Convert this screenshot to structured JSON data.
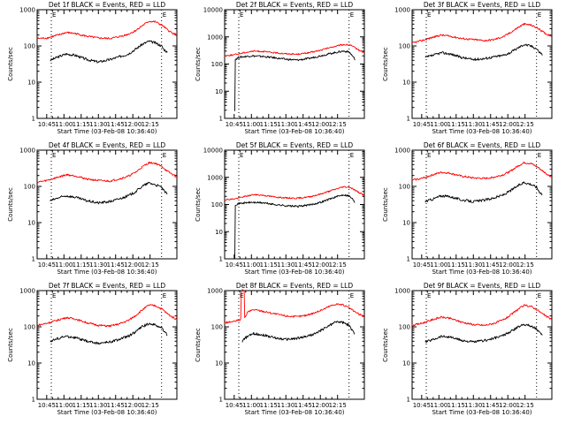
{
  "colors": {
    "events": "#000000",
    "lld": "#ff0000",
    "markers": "#000000"
  },
  "chart_data": [
    {
      "type": "line",
      "title": "Det 1f BLACK = Events, RED = LLD",
      "xlabel": "Start Time (03-Feb-08 10:36:40)",
      "ylabel": "Counts/sec",
      "yscale": "log",
      "ylim": [
        1,
        1000
      ],
      "yticks": [
        "1",
        "10",
        "100",
        "1000"
      ],
      "xticks": [
        "10:45",
        "11:00",
        "11:15",
        "11:30",
        "11:45",
        "12:00",
        "12:15"
      ],
      "xlim_min": [
        36.67,
        158.33
      ],
      "vlines_min": [
        49,
        145
      ],
      "marker_label": "E",
      "series": [
        {
          "name": "Events",
          "color": "black",
          "start": 48,
          "end": 150,
          "x": [
            48,
            55,
            62,
            70,
            80,
            90,
            100,
            108,
            116,
            122,
            128,
            134,
            140,
            145,
            147,
            149,
            150
          ],
          "y": [
            40,
            50,
            60,
            55,
            42,
            36,
            42,
            50,
            60,
            80,
            110,
            135,
            120,
            100,
            80,
            72,
            65
          ]
        },
        {
          "name": "LLD",
          "color": "red",
          "start": 36.67,
          "end": 158.33,
          "x": [
            36.67,
            45,
            55,
            62,
            70,
            80,
            90,
            100,
            108,
            116,
            122,
            128,
            134,
            140,
            146,
            150,
            154,
            158.33
          ],
          "y": [
            160,
            165,
            200,
            235,
            220,
            185,
            165,
            160,
            180,
            210,
            260,
            360,
            480,
            460,
            360,
            280,
            230,
            200
          ]
        }
      ]
    },
    {
      "type": "line",
      "title": "Det 2f BLACK = Events, RED = LLD",
      "xlabel": "Start Time (03-Feb-08 10:36:40)",
      "ylabel": "Counts/sec",
      "yscale": "log",
      "ylim": [
        1,
        10000
      ],
      "yticks": [
        "1",
        "10",
        "100",
        "1000",
        "10000"
      ],
      "xticks": [
        "10:45",
        "11:00",
        "11:15",
        "11:30",
        "11:45",
        "12:00",
        "12:15"
      ],
      "xlim_min": [
        36.67,
        158.33
      ],
      "vlines_min": [
        49,
        145
      ],
      "marker_label": "E",
      "series": [
        {
          "name": "Events",
          "color": "black",
          "start": 45.5,
          "end": 150,
          "x": [
            45.5,
            45.7,
            46,
            50,
            60,
            70,
            80,
            90,
            100,
            110,
            120,
            130,
            140,
            145,
            148,
            150
          ],
          "y": [
            2,
            120,
            150,
            180,
            200,
            190,
            170,
            150,
            140,
            160,
            200,
            250,
            300,
            280,
            200,
            150
          ]
        },
        {
          "name": "LLD",
          "color": "red",
          "start": 36.67,
          "end": 158.33,
          "x": [
            36.67,
            45,
            55,
            62,
            70,
            80,
            90,
            100,
            110,
            120,
            130,
            140,
            146,
            150,
            154,
            158.33
          ],
          "y": [
            200,
            220,
            270,
            300,
            290,
            260,
            240,
            230,
            260,
            320,
            420,
            520,
            500,
            400,
            320,
            260
          ]
        }
      ]
    },
    {
      "type": "line",
      "title": "Det 3f BLACK = Events, RED = LLD",
      "xlabel": "Start Time (03-Feb-08 10:36:40)",
      "ylabel": "Counts/sec",
      "yscale": "log",
      "ylim": [
        1,
        1000
      ],
      "yticks": [
        "1",
        "10",
        "100",
        "1000"
      ],
      "xticks": [
        "10:45",
        "11:00",
        "11:15",
        "11:30",
        "11:45",
        "12:00",
        "12:15"
      ],
      "xlim_min": [
        36.67,
        158.33
      ],
      "vlines_min": [
        49,
        145
      ],
      "marker_label": "E",
      "series": [
        {
          "name": "Events",
          "color": "black",
          "start": 48,
          "end": 150,
          "x": [
            48,
            55,
            62,
            70,
            80,
            90,
            100,
            108,
            116,
            122,
            128,
            134,
            140,
            145,
            147,
            149,
            150
          ],
          "y": [
            48,
            55,
            65,
            60,
            48,
            42,
            45,
            50,
            55,
            65,
            85,
            110,
            100,
            85,
            70,
            62,
            58
          ]
        },
        {
          "name": "LLD",
          "color": "red",
          "start": 36.67,
          "end": 158.33,
          "x": [
            36.67,
            45,
            55,
            62,
            70,
            80,
            90,
            100,
            108,
            116,
            122,
            128,
            134,
            140,
            146,
            150,
            154,
            158.33
          ],
          "y": [
            120,
            140,
            175,
            200,
            185,
            160,
            150,
            140,
            150,
            180,
            230,
            310,
            400,
            380,
            310,
            250,
            210,
            190
          ]
        }
      ]
    },
    {
      "type": "line",
      "title": "Det 4f BLACK = Events, RED = LLD",
      "xlabel": "Start Time (03-Feb-08 10:36:40)",
      "ylabel": "Counts/sec",
      "yscale": "log",
      "ylim": [
        1,
        1000
      ],
      "yticks": [
        "1",
        "10",
        "100",
        "1000"
      ],
      "xticks": [
        "10:45",
        "11:00",
        "11:15",
        "11:30",
        "11:45",
        "12:00",
        "12:15"
      ],
      "xlim_min": [
        36.67,
        158.33
      ],
      "vlines_min": [
        49,
        145
      ],
      "marker_label": "E",
      "series": [
        {
          "name": "Events",
          "color": "black",
          "start": 48,
          "end": 150,
          "x": [
            48,
            55,
            62,
            70,
            80,
            90,
            100,
            108,
            116,
            122,
            128,
            134,
            140,
            145,
            147,
            149,
            150
          ],
          "y": [
            40,
            48,
            55,
            50,
            40,
            35,
            38,
            45,
            55,
            70,
            100,
            125,
            110,
            95,
            75,
            65,
            60
          ]
        },
        {
          "name": "LLD",
          "color": "red",
          "start": 36.67,
          "end": 158.33,
          "x": [
            36.67,
            45,
            55,
            62,
            70,
            80,
            90,
            100,
            108,
            116,
            122,
            128,
            134,
            140,
            146,
            150,
            154,
            158.33
          ],
          "y": [
            130,
            145,
            180,
            210,
            195,
            160,
            145,
            140,
            160,
            190,
            240,
            340,
            450,
            430,
            340,
            260,
            220,
            180
          ]
        }
      ]
    },
    {
      "type": "line",
      "title": "Det 5f BLACK = Events, RED = LLD",
      "xlabel": "Start Time (03-Feb-08 10:36:40)",
      "ylabel": "Counts/sec",
      "yscale": "log",
      "ylim": [
        1,
        10000
      ],
      "yticks": [
        "1",
        "10",
        "100",
        "1000",
        "10000"
      ],
      "xticks": [
        "10:45",
        "11:00",
        "11:15",
        "11:30",
        "11:45",
        "12:00",
        "12:15"
      ],
      "xlim_min": [
        36.67,
        158.33
      ],
      "vlines_min": [
        49,
        145
      ],
      "marker_label": "E",
      "series": [
        {
          "name": "Events",
          "color": "black",
          "start": 45.5,
          "end": 150,
          "x": [
            45.5,
            45.7,
            46,
            50,
            60,
            70,
            80,
            90,
            100,
            110,
            120,
            130,
            140,
            145,
            148,
            150
          ],
          "y": [
            1,
            80,
            100,
            110,
            120,
            115,
            100,
            90,
            85,
            95,
            120,
            170,
            230,
            210,
            160,
            120
          ]
        },
        {
          "name": "LLD",
          "color": "red",
          "start": 36.67,
          "end": 158.33,
          "x": [
            36.67,
            45,
            55,
            62,
            70,
            80,
            90,
            100,
            110,
            120,
            130,
            140,
            146,
            150,
            154,
            158.33
          ],
          "y": [
            150,
            160,
            200,
            230,
            220,
            190,
            175,
            170,
            190,
            240,
            330,
            450,
            430,
            340,
            270,
            220
          ]
        }
      ]
    },
    {
      "type": "line",
      "title": "Det 6f BLACK = Events, RED = LLD",
      "xlabel": "Start Time (03-Feb-08 10:36:40)",
      "ylabel": "Counts/sec",
      "yscale": "log",
      "ylim": [
        1,
        1000
      ],
      "yticks": [
        "1",
        "10",
        "100",
        "1000"
      ],
      "xticks": [
        "10:45",
        "11:00",
        "11:15",
        "11:30",
        "11:45",
        "12:00",
        "12:15"
      ],
      "xlim_min": [
        36.67,
        158.33
      ],
      "vlines_min": [
        49,
        145
      ],
      "marker_label": "E",
      "series": [
        {
          "name": "Events",
          "color": "black",
          "start": 48,
          "end": 150,
          "x": [
            48,
            55,
            62,
            70,
            80,
            90,
            100,
            108,
            116,
            122,
            128,
            134,
            140,
            145,
            147,
            149,
            150
          ],
          "y": [
            38,
            45,
            55,
            52,
            42,
            38,
            42,
            48,
            58,
            75,
            100,
            130,
            115,
            95,
            75,
            65,
            58
          ]
        },
        {
          "name": "LLD",
          "color": "red",
          "start": 36.67,
          "end": 158.33,
          "x": [
            36.67,
            45,
            55,
            62,
            70,
            80,
            90,
            100,
            108,
            116,
            122,
            128,
            134,
            140,
            146,
            150,
            154,
            158.33
          ],
          "y": [
            150,
            165,
            210,
            245,
            230,
            190,
            170,
            165,
            180,
            210,
            260,
            350,
            450,
            430,
            340,
            270,
            220,
            180
          ]
        }
      ]
    },
    {
      "type": "line",
      "title": "Det 7f BLACK = Events, RED = LLD",
      "xlabel": "Start Time (03-Feb-08 10:36:40)",
      "ylabel": "Counts/sec",
      "yscale": "log",
      "ylim": [
        1,
        1000
      ],
      "yticks": [
        "1",
        "10",
        "100",
        "1000"
      ],
      "xticks": [
        "10:45",
        "11:00",
        "11:15",
        "11:30",
        "11:45",
        "12:00",
        "12:15"
      ],
      "xlim_min": [
        36.67,
        158.33
      ],
      "vlines_min": [
        49,
        145
      ],
      "marker_label": "E",
      "series": [
        {
          "name": "Events",
          "color": "black",
          "start": 48,
          "end": 150,
          "x": [
            48,
            55,
            62,
            70,
            80,
            90,
            100,
            108,
            116,
            122,
            128,
            134,
            140,
            145,
            147,
            149,
            150
          ],
          "y": [
            40,
            48,
            55,
            50,
            40,
            35,
            38,
            45,
            55,
            72,
            100,
            125,
            110,
            95,
            75,
            65,
            60
          ]
        },
        {
          "name": "LLD",
          "color": "red",
          "start": 36.67,
          "end": 158.33,
          "x": [
            36.67,
            45,
            55,
            62,
            70,
            80,
            90,
            100,
            108,
            116,
            122,
            128,
            134,
            140,
            146,
            150,
            154,
            158.33
          ],
          "y": [
            110,
            125,
            155,
            180,
            165,
            130,
            110,
            105,
            120,
            150,
            200,
            290,
            400,
            380,
            300,
            230,
            190,
            160
          ]
        }
      ]
    },
    {
      "type": "line",
      "title": "Det 8f BLACK = Events, RED = LLD",
      "xlabel": "Start Time (03-Feb-08 10:36:40)",
      "ylabel": "Counts/sec",
      "yscale": "log",
      "ylim": [
        1,
        1000
      ],
      "yticks": [
        "1",
        "10",
        "100",
        "1000"
      ],
      "xticks": [
        "10:45",
        "11:00",
        "11:15",
        "11:30",
        "11:45",
        "12:00",
        "12:15"
      ],
      "xlim_min": [
        36.67,
        158.33
      ],
      "vlines_min": [
        49,
        145
      ],
      "marker_label": "E",
      "series": [
        {
          "name": "Events",
          "color": "black",
          "start": 52,
          "end": 150,
          "x": [
            52,
            55,
            57,
            62,
            70,
            80,
            90,
            100,
            108,
            116,
            122,
            128,
            134,
            140,
            145,
            147,
            149,
            150
          ],
          "y": [
            40,
            50,
            55,
            65,
            60,
            50,
            45,
            48,
            55,
            65,
            85,
            110,
            140,
            130,
            110,
            85,
            72,
            65
          ]
        },
        {
          "name": "LLD",
          "color": "red",
          "start": 36.67,
          "end": 158.33,
          "x": [
            36.67,
            45,
            51,
            51.2,
            53.8,
            54,
            57,
            62,
            70,
            80,
            90,
            100,
            108,
            116,
            122,
            128,
            134,
            140,
            146,
            150,
            154,
            158.33
          ],
          "y": [
            130,
            140,
            160,
            1000,
            1000,
            170,
            260,
            300,
            270,
            230,
            200,
            190,
            210,
            250,
            300,
            370,
            430,
            400,
            320,
            260,
            220,
            190
          ]
        }
      ]
    },
    {
      "type": "line",
      "title": "Det 9f BLACK = Events, RED = LLD",
      "xlabel": "Start Time (03-Feb-08 10:36:40)",
      "ylabel": "Counts/sec",
      "yscale": "log",
      "ylim": [
        1,
        1000
      ],
      "yticks": [
        "1",
        "10",
        "100",
        "1000"
      ],
      "xticks": [
        "10:45",
        "11:00",
        "11:15",
        "11:30",
        "11:45",
        "12:00",
        "12:15"
      ],
      "xlim_min": [
        36.67,
        158.33
      ],
      "vlines_min": [
        49,
        145
      ],
      "marker_label": "E",
      "series": [
        {
          "name": "Events",
          "color": "black",
          "start": 48,
          "end": 150,
          "x": [
            48,
            55,
            62,
            70,
            80,
            90,
            100,
            108,
            116,
            122,
            128,
            134,
            140,
            145,
            147,
            149,
            150
          ],
          "y": [
            38,
            45,
            55,
            52,
            42,
            38,
            42,
            48,
            58,
            72,
            95,
            120,
            105,
            90,
            72,
            62,
            56
          ]
        },
        {
          "name": "LLD",
          "color": "red",
          "start": 36.67,
          "end": 158.33,
          "x": [
            36.67,
            45,
            55,
            62,
            70,
            80,
            90,
            100,
            108,
            116,
            122,
            128,
            134,
            140,
            146,
            150,
            154,
            158.33
          ],
          "y": [
            110,
            125,
            160,
            185,
            170,
            135,
            115,
            110,
            125,
            155,
            205,
            290,
            390,
            370,
            290,
            230,
            190,
            160
          ]
        }
      ]
    }
  ]
}
